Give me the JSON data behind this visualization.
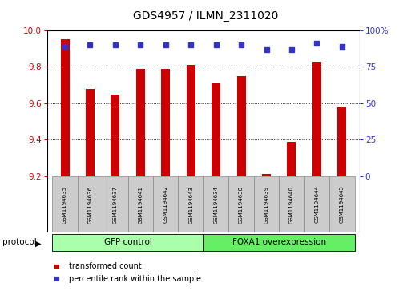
{
  "title": "GDS4957 / ILMN_2311020",
  "samples": [
    "GSM1194635",
    "GSM1194636",
    "GSM1194637",
    "GSM1194641",
    "GSM1194642",
    "GSM1194643",
    "GSM1194634",
    "GSM1194638",
    "GSM1194639",
    "GSM1194640",
    "GSM1194644",
    "GSM1194645"
  ],
  "transformed_count": [
    9.95,
    9.68,
    9.65,
    9.79,
    9.79,
    9.81,
    9.71,
    9.75,
    9.21,
    9.39,
    9.83,
    9.58
  ],
  "percentile_rank": [
    89,
    90,
    90,
    90,
    90,
    90,
    90,
    90,
    87,
    87,
    91,
    89
  ],
  "ylim_left": [
    9.2,
    10.0
  ],
  "ylim_right": [
    0,
    100
  ],
  "yticks_left": [
    9.2,
    9.4,
    9.6,
    9.8,
    10.0
  ],
  "yticks_right": [
    0,
    25,
    50,
    75,
    100
  ],
  "bar_color": "#cc0000",
  "dot_color": "#3333cc",
  "groups": [
    {
      "label": "GFP control",
      "start": 0,
      "end": 6,
      "color": "#aaffaa"
    },
    {
      "label": "FOXA1 overexpression",
      "start": 6,
      "end": 12,
      "color": "#66ee66"
    }
  ],
  "protocol_label": "protocol",
  "legend_items": [
    {
      "label": "transformed count",
      "color": "#cc0000"
    },
    {
      "label": "percentile rank within the sample",
      "color": "#3333cc"
    }
  ],
  "axis_left_color": "#cc0000",
  "axis_right_color": "#3333cc",
  "bar_bg_color": "#cccccc",
  "cell_edge_color": "#888888",
  "figsize": [
    5.13,
    3.63
  ],
  "dpi": 100
}
